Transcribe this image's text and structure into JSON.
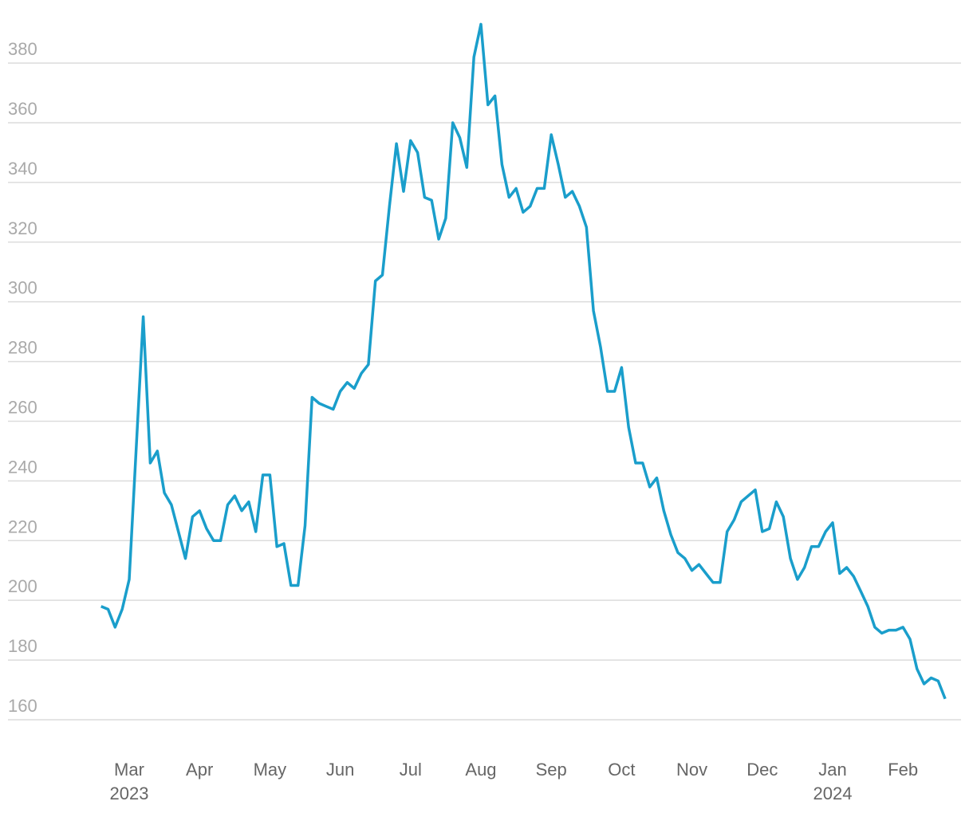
{
  "chart_data": {
    "type": "line",
    "color": "#1a9ecb",
    "grid": true,
    "ylim": [
      155,
      395
    ],
    "yticks": [
      160,
      180,
      200,
      220,
      240,
      260,
      280,
      300,
      320,
      340,
      360,
      380
    ],
    "categories": [
      null,
      null,
      null,
      null,
      "Mar",
      null,
      null,
      null,
      null,
      null,
      null,
      null,
      null,
      null,
      "Apr",
      null,
      null,
      null,
      null,
      null,
      null,
      null,
      null,
      null,
      "May",
      null,
      null,
      null,
      null,
      null,
      null,
      null,
      null,
      null,
      "Jun",
      null,
      null,
      null,
      null,
      null,
      null,
      null,
      null,
      null,
      "Jul",
      null,
      null,
      null,
      null,
      null,
      null,
      null,
      null,
      null,
      "Aug",
      null,
      null,
      null,
      null,
      null,
      null,
      null,
      null,
      null,
      "Sep",
      null,
      null,
      null,
      null,
      null,
      null,
      null,
      null,
      null,
      "Oct",
      null,
      null,
      null,
      null,
      null,
      null,
      null,
      null,
      null,
      "Nov",
      null,
      null,
      null,
      null,
      null,
      null,
      null,
      null,
      null,
      "Dec",
      null,
      null,
      null,
      null,
      null,
      null,
      null,
      null,
      null,
      "Jan",
      null,
      null,
      null,
      null,
      null,
      null,
      null,
      null,
      null,
      "Feb",
      null,
      null,
      null,
      null,
      null,
      null
    ],
    "category_years": [
      null,
      null,
      null,
      null,
      "2023",
      null,
      null,
      null,
      null,
      null,
      null,
      null,
      null,
      null,
      null,
      null,
      null,
      null,
      null,
      null,
      null,
      null,
      null,
      null,
      null,
      null,
      null,
      null,
      null,
      null,
      null,
      null,
      null,
      null,
      null,
      null,
      null,
      null,
      null,
      null,
      null,
      null,
      null,
      null,
      null,
      null,
      null,
      null,
      null,
      null,
      null,
      null,
      null,
      null,
      null,
      null,
      null,
      null,
      null,
      null,
      null,
      null,
      null,
      null,
      null,
      null,
      null,
      null,
      null,
      null,
      null,
      null,
      null,
      null,
      null,
      null,
      null,
      null,
      null,
      null,
      null,
      null,
      null,
      null,
      null,
      null,
      null,
      null,
      null,
      null,
      null,
      null,
      null,
      null,
      null,
      null,
      null,
      null,
      null,
      null,
      null,
      null,
      null,
      null,
      "2024",
      null,
      null,
      null,
      null,
      null,
      null,
      null,
      null,
      null,
      null,
      null,
      null,
      null,
      null,
      null,
      null
    ],
    "values": [
      198,
      197,
      191,
      197,
      207,
      251,
      295,
      246,
      250,
      236,
      232,
      223,
      214,
      228,
      230,
      224,
      220,
      220,
      232,
      235,
      230,
      233,
      223,
      242,
      242,
      218,
      219,
      205,
      205,
      225,
      268,
      266,
      265,
      264,
      270,
      273,
      271,
      276,
      279,
      307,
      309,
      332,
      353,
      337,
      354,
      350,
      335,
      334,
      321,
      328,
      360,
      355,
      345,
      382,
      393,
      366,
      369,
      346,
      335,
      338,
      330,
      332,
      338,
      338,
      356,
      346,
      335,
      337,
      332,
      325,
      297,
      285,
      270,
      270,
      278,
      258,
      246,
      246,
      238,
      241,
      230,
      222,
      216,
      214,
      210,
      212,
      209,
      206,
      206,
      223,
      227,
      233,
      235,
      237,
      223,
      224,
      233,
      228,
      214,
      207,
      211,
      218,
      218,
      223,
      226,
      209,
      211,
      208,
      203,
      198,
      191,
      189,
      190,
      190,
      191,
      187,
      177,
      172,
      174,
      173,
      167
    ]
  }
}
